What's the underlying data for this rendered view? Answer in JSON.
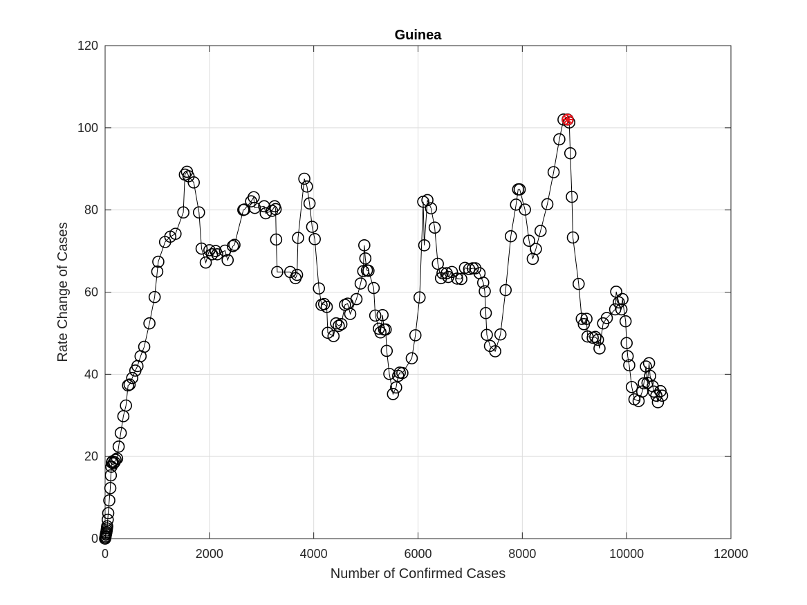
{
  "chart_data": {
    "type": "line",
    "title": "Guinea",
    "xlabel": "Number of Confirmed Cases",
    "ylabel": "Rate Change of Cases",
    "xlim": [
      0,
      12000
    ],
    "ylim": [
      0,
      120
    ],
    "xticks": [
      0,
      2000,
      4000,
      6000,
      8000,
      10000,
      12000
    ],
    "yticks": [
      0,
      20,
      40,
      60,
      80,
      100,
      120
    ],
    "xtick_labels": [
      "0",
      "2000",
      "4000",
      "6000",
      "8000",
      "10000",
      "12000"
    ],
    "ytick_labels": [
      "0",
      "20",
      "40",
      "60",
      "80",
      "100",
      "120"
    ],
    "grid": true,
    "colors": {
      "line": "#000000",
      "marker": "#000000",
      "highlight": "#e8141b",
      "grid": "#dcdcdc"
    },
    "series": [
      {
        "marker": "circle",
        "x": [
          0,
          5,
          10,
          15,
          20,
          25,
          30,
          35,
          40,
          50,
          60,
          80,
          100,
          110,
          120,
          130,
          140,
          160,
          180,
          200,
          230,
          260,
          300,
          350,
          400,
          440,
          470,
          520,
          580,
          620,
          680,
          750,
          850,
          950,
          1000,
          1020,
          1150,
          1250,
          1350,
          1500,
          1530,
          1570,
          1600,
          1700,
          1800,
          1850,
          1930,
          2000,
          2050,
          2120,
          2150,
          2300,
          2350,
          2450,
          2480,
          2650,
          2670,
          2800,
          2850,
          2870,
          3050,
          3080,
          3200,
          3250,
          3270,
          3280,
          3300,
          3550,
          3650,
          3680,
          3700,
          3820,
          3870,
          3920,
          3970,
          4020,
          4100,
          4150,
          4200,
          4250,
          4270,
          4380,
          4430,
          4480,
          4530,
          4600,
          4650,
          4700,
          4820,
          4900,
          4950,
          4970,
          4990,
          5020,
          5050,
          5150,
          5180,
          5250,
          5280,
          5320,
          5350,
          5380,
          5400,
          5450,
          5520,
          5580,
          5620,
          5650,
          5700,
          5880,
          5950,
          6030,
          6100,
          6120,
          6180,
          6250,
          6320,
          6380,
          6440,
          6470,
          6550,
          6580,
          6650,
          6750,
          6830,
          6900,
          6980,
          7050,
          7100,
          7180,
          7250,
          7280,
          7300,
          7320,
          7380,
          7480,
          7580,
          7680,
          7780,
          7880,
          7920,
          7950,
          8050,
          8130,
          8200,
          8260,
          8350,
          8480,
          8600,
          8710,
          8790,
          8870,
          8900,
          8920,
          8950,
          8970,
          9080,
          9140,
          9180,
          9230,
          9250,
          9350,
          9400,
          9450,
          9480,
          9550,
          9620,
          9780,
          9800,
          9850,
          9900,
          9920,
          9980,
          10000,
          10020,
          10050,
          10100,
          10150,
          10230,
          10300,
          10330,
          10370,
          10400,
          10430,
          10450,
          10500,
          10520,
          10570,
          10600,
          10650,
          10680
        ],
        "y": [
          0,
          0.3,
          0.6,
          1,
          1.3,
          1.6,
          2,
          2.5,
          3,
          4.6,
          6.2,
          9.3,
          12.3,
          15.4,
          17.5,
          18.5,
          18.8,
          18.3,
          18.6,
          19.2,
          19.5,
          22.4,
          25.7,
          29.8,
          32.4,
          37.3,
          37.5,
          39.1,
          40.9,
          42,
          44.4,
          46.7,
          52.4,
          58.8,
          65,
          67.4,
          72.2,
          73.5,
          74.2,
          79.4,
          88.6,
          89.3,
          88.2,
          86.7,
          79.4,
          70.6,
          67.2,
          70.2,
          69.2,
          70,
          69.2,
          70.1,
          67.8,
          71.2,
          71.5,
          80,
          80.1,
          82.1,
          83.1,
          80.5,
          80.9,
          79.2,
          79.8,
          80.9,
          80.2,
          72.8,
          64.9,
          64.9,
          63.4,
          64.2,
          73.2,
          87.6,
          85.7,
          81.6,
          75.9,
          72.9,
          60.9,
          56.9,
          57.1,
          56.4,
          50.1,
          49.3,
          52.4,
          51.8,
          52.2,
          56.9,
          57.2,
          54.7,
          58.3,
          62.1,
          65.1,
          71.4,
          68.2,
          65.3,
          65.2,
          61,
          54.3,
          51.1,
          50.2,
          54.4,
          50.9,
          50.9,
          45.7,
          40.1,
          35.2,
          36.8,
          39.6,
          40.4,
          40.3,
          43.9,
          49.5,
          58.7,
          82,
          71.4,
          82.4,
          80.4,
          75.7,
          66.9,
          63.4,
          64.6,
          64.6,
          63.7,
          64.9,
          63.3,
          63.2,
          65.9,
          65.6,
          65.8,
          65.8,
          64.6,
          62.3,
          60.2,
          54.9,
          49.6,
          46.9,
          45.6,
          49.7,
          60.5,
          73.6,
          81.3,
          85,
          85,
          80.1,
          72.5,
          68.1,
          70.5,
          74.9,
          81.4,
          89.2,
          97.2,
          102,
          102,
          101.3,
          93.8,
          83.2,
          73.3,
          62,
          53.5,
          52.2,
          53.5,
          49.2,
          48.9,
          49.1,
          48.4,
          46.3,
          52.4,
          53.7,
          55.8,
          60.1,
          57.5,
          55.8,
          58.3,
          52.9,
          47.6,
          44.4,
          42.2,
          36.9,
          33.9,
          33.5,
          35.8,
          37.8,
          41.9,
          37.9,
          42.7,
          39.6,
          37.1,
          35.8,
          34.8,
          33.2,
          35.9,
          34.8
        ],
        "highlight_point": {
          "x": 8870,
          "y": 102,
          "marker": "circle-star"
        }
      }
    ]
  }
}
